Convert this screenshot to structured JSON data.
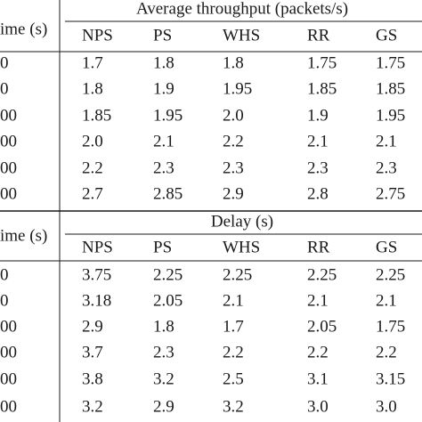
{
  "table": {
    "sections": [
      {
        "title": "Average throughput (packets/s)",
        "row_header": "ime (s)",
        "columns": [
          "NPS",
          "PS",
          "WHS",
          "RR",
          "GS"
        ],
        "rows": [
          {
            "label": "0",
            "cells": [
              "1.7",
              "1.8",
              "1.8",
              "1.75",
              "1.75"
            ]
          },
          {
            "label": "0",
            "cells": [
              "1.8",
              "1.9",
              "1.95",
              "1.85",
              "1.85"
            ]
          },
          {
            "label": "00",
            "cells": [
              "1.85",
              "1.95",
              "2.0",
              "1.9",
              "1.95"
            ]
          },
          {
            "label": "00",
            "cells": [
              "2.0",
              "2.1",
              "2.2",
              "2.1",
              "2.1"
            ]
          },
          {
            "label": "00",
            "cells": [
              "2.2",
              "2.3",
              "2.3",
              "2.3",
              "2.3"
            ]
          },
          {
            "label": "00",
            "cells": [
              "2.7",
              "2.85",
              "2.9",
              "2.8",
              "2.75"
            ]
          }
        ]
      },
      {
        "title": "Delay (s)",
        "row_header": "ime (s)",
        "columns": [
          "NPS",
          "PS",
          "WHS",
          "RR",
          "GS"
        ],
        "rows": [
          {
            "label": "0",
            "cells": [
              "3.75",
              "2.25",
              "2.25",
              "2.25",
              "2.25"
            ]
          },
          {
            "label": "0",
            "cells": [
              "3.18",
              "2.05",
              "2.1",
              "2.1",
              "2.1"
            ]
          },
          {
            "label": "00",
            "cells": [
              "2.9",
              "1.8",
              "1.7",
              "2.05",
              "1.75"
            ]
          },
          {
            "label": "00",
            "cells": [
              "3.7",
              "2.3",
              "2.2",
              "2.2",
              "2.2"
            ]
          },
          {
            "label": "00",
            "cells": [
              "3.8",
              "3.2",
              "2.5",
              "3.1",
              "3.15"
            ]
          },
          {
            "label": "00",
            "cells": [
              "3.2",
              "2.9",
              "3.2",
              "3.0",
              "3.0"
            ]
          }
        ]
      }
    ]
  }
}
